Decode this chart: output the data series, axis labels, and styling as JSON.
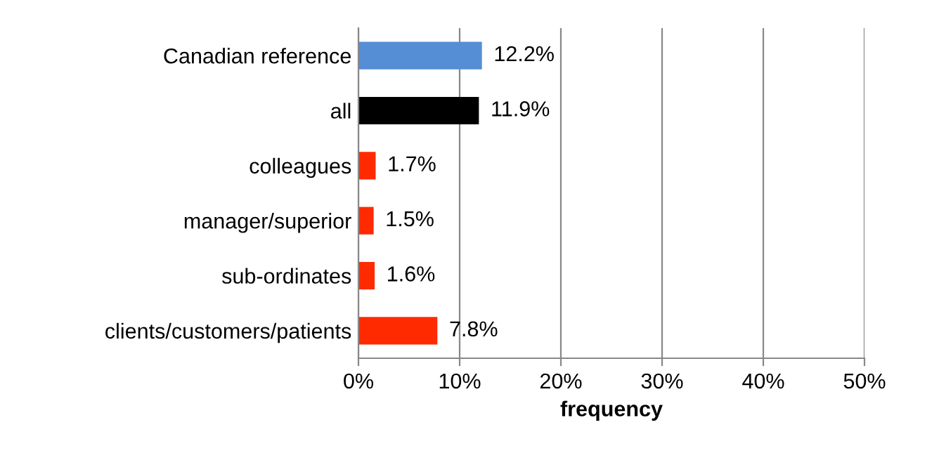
{
  "chart_data": {
    "type": "bar",
    "orientation": "horizontal",
    "xlabel": "frequency",
    "categories": [
      "Canadian reference",
      "all",
      "colleagues",
      "manager/superior",
      "sub-ordinates",
      "clients/customers/patients"
    ],
    "values": [
      12.2,
      11.9,
      1.7,
      1.5,
      1.6,
      7.8
    ],
    "colors": [
      "#558ed5",
      "#000000",
      "#ff2a00",
      "#ff2a00",
      "#ff2a00",
      "#ff2a00"
    ],
    "value_labels": [
      "12.2%",
      "11.9%",
      "1.7%",
      "1.5%",
      "1.6%",
      "7.8%"
    ],
    "xlim": [
      0,
      50
    ],
    "xticks": [
      {
        "value": 0,
        "label": "0%"
      },
      {
        "value": 10,
        "label": "10%"
      },
      {
        "value": 20,
        "label": "20%"
      },
      {
        "value": 30,
        "label": "30%"
      },
      {
        "value": 40,
        "label": "40%"
      },
      {
        "value": 50,
        "label": "50%"
      }
    ],
    "grid": "x",
    "legend": false
  }
}
